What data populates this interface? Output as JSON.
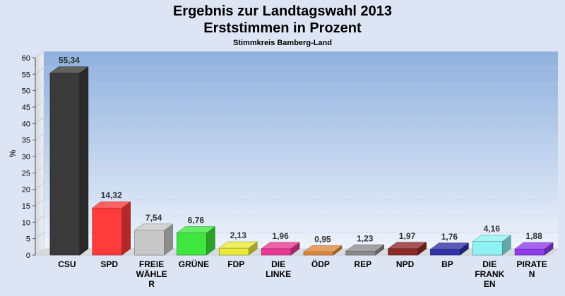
{
  "chart_data": {
    "type": "bar",
    "title": "Ergebnis zur Landtagswahl 2013",
    "subtitle": "Erststimmen in Prozent",
    "subtitle2": "Stimmkreis Bamberg-Land",
    "ylabel": "%",
    "ylim": [
      0,
      60
    ],
    "yticks": [
      "0",
      "5",
      "10",
      "15",
      "20",
      "25",
      "30",
      "35",
      "40",
      "45",
      "50",
      "55",
      "60"
    ],
    "grid": true,
    "categories": [
      [
        "CSU"
      ],
      [
        "SPD"
      ],
      [
        "FREIE",
        "WÄHLE",
        "R"
      ],
      [
        "GRÜNE"
      ],
      [
        "FDP"
      ],
      [
        "DIE",
        "LINKE"
      ],
      [
        "ÖDP"
      ],
      [
        "REP"
      ],
      [
        "NPD"
      ],
      [
        "BP"
      ],
      [
        "DIE",
        "FRANK",
        "EN"
      ],
      [
        "PIRATE",
        "N"
      ]
    ],
    "values": [
      55.34,
      14.32,
      7.54,
      6.76,
      2.13,
      1.96,
      0.95,
      1.23,
      1.97,
      1.76,
      4.16,
      1.88
    ],
    "value_labels": [
      "55,34",
      "14,32",
      "7,54",
      "6,76",
      "2,13",
      "1,96",
      "0,95",
      "1,23",
      "1,97",
      "1,76",
      "4,16",
      "1,88"
    ],
    "colors": [
      "#3a3a3a",
      "#ff3b3b",
      "#c8c8c8",
      "#3ee63e",
      "#eaea3a",
      "#e83894",
      "#e0883a",
      "#8c8c8c",
      "#8e2a2a",
      "#3232a8",
      "#8ef2f2",
      "#8e3cec"
    ]
  }
}
